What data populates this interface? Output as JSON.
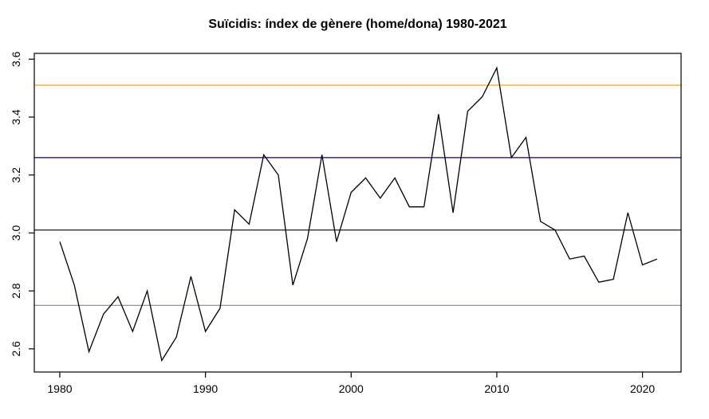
{
  "title": "Suïcidis: índex de gènere (home/dona) 1980-2021",
  "background_color": "#ffffff",
  "chart_data": {
    "type": "line",
    "title": "Suïcidis: índex de gènere (home/dona) 1980-2021",
    "xlabel": "",
    "ylabel": "",
    "grid": false,
    "legend": null,
    "xlim": [
      1978.25,
      2022.65
    ],
    "ylim": [
      2.52,
      3.62
    ],
    "x_axis": {
      "ticks": [
        1980,
        1990,
        2000,
        2010,
        2020
      ]
    },
    "y_axis": {
      "ticks": [
        2.6,
        2.8,
        3.0,
        3.2,
        3.4,
        3.6
      ]
    },
    "x": [
      1980,
      1981,
      1982,
      1983,
      1984,
      1985,
      1986,
      1987,
      1988,
      1989,
      1990,
      1991,
      1992,
      1993,
      1994,
      1995,
      1996,
      1997,
      1998,
      1999,
      2000,
      2001,
      2002,
      2003,
      2004,
      2005,
      2006,
      2007,
      2008,
      2009,
      2010,
      2011,
      2012,
      2013,
      2014,
      2015,
      2016,
      2017,
      2018,
      2019,
      2020,
      2021
    ],
    "series": [
      {
        "name": "index-genere-home-dona",
        "color": "#000000",
        "values": [
          2.97,
          2.82,
          2.59,
          2.72,
          2.78,
          2.66,
          2.8,
          2.56,
          2.64,
          2.85,
          2.66,
          2.74,
          3.08,
          3.03,
          3.27,
          3.2,
          2.82,
          2.98,
          3.27,
          2.97,
          3.14,
          3.19,
          3.12,
          3.19,
          3.09,
          3.09,
          3.41,
          3.07,
          3.42,
          3.47,
          3.57,
          3.26,
          3.33,
          3.04,
          3.01,
          2.91,
          2.92,
          2.83,
          2.84,
          3.07,
          2.89,
          2.91
        ]
      }
    ],
    "reference_lines": [
      {
        "name": "orange-reference-line",
        "value": 3.51,
        "color": "#ffa500"
      },
      {
        "name": "navy-reference-line",
        "value": 3.26,
        "color": "#00008b"
      },
      {
        "name": "black-reference-line",
        "value": 3.01,
        "color": "#000000"
      },
      {
        "name": "periwinkle-reference-line",
        "value": 2.75,
        "color": "#8f8fc0"
      }
    ],
    "axis_color": "#000000"
  }
}
